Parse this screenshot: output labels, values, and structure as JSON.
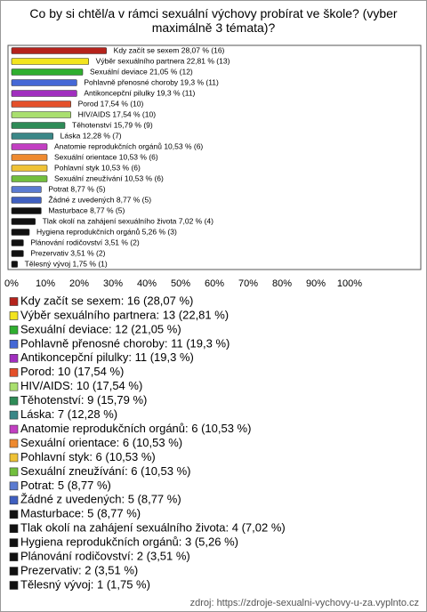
{
  "chart_data": {
    "type": "bar",
    "orientation": "horizontal",
    "title": "Co by si chtěl/a v rámci sexuální výchovy probírat ve škole? (vyber maximálně 3 témata)?",
    "values": [
      28.07,
      22.81,
      21.05,
      19.3,
      19.3,
      17.54,
      17.54,
      15.79,
      12.28,
      10.53,
      10.53,
      10.53,
      10.53,
      8.77,
      8.77,
      8.77,
      7.02,
      5.26,
      3.51,
      3.51,
      1.75
    ],
    "value_labels": [
      "Kdy začít se sexem 28,07 % (16)",
      "Výběr sexuálního partnera 22,81 % (13)",
      "Sexuální deviace 21,05 % (12)",
      "Pohlavně přenosné choroby 19,3 % (11)",
      "Antikoncepční pilulky 19,3 % (11)",
      "Porod 17,54 % (10)",
      "HIV/AIDS 17,54 % (10)",
      "Těhotenství 15,79 % (9)",
      "Láska 12,28 % (7)",
      "Anatomie reprodukčních orgánů 10,53 % (6)",
      "Sexuální orientace 10,53 % (6)",
      "Pohlavní styk 10,53 % (6)",
      "Sexuální zneužívání 10,53 % (6)",
      "Potrat 8,77 % (5)",
      "Žádné z uvedených 8,77 % (5)",
      "Masturbace 8,77 % (5)",
      "Tlak okolí na zahájení sexuálního života 7,02 % (4)",
      "Hygiena reprodukčních orgánů 5,26 % (3)",
      "Plánování rodičovství 3,51 % (2)",
      "Prezervativ 3,51 % (2)",
      "Tělesný vývoj 1,75 % (1)"
    ],
    "legend_labels": [
      "Kdy začít se sexem: 16 (28,07 %)",
      "Výběr sexuálního partnera: 13 (22,81 %)",
      "Sexuální deviace: 12 (21,05 %)",
      "Pohlavně přenosné choroby: 11 (19,3 %)",
      "Antikoncepční pilulky: 11 (19,3 %)",
      "Porod: 10 (17,54 %)",
      "HIV/AIDS: 10 (17,54 %)",
      "Těhotenství: 9 (15,79 %)",
      "Láska: 7 (12,28 %)",
      "Anatomie reprodukčních orgánů: 6 (10,53 %)",
      "Sexuální orientace: 6 (10,53 %)",
      "Pohlavní styk: 6 (10,53 %)",
      "Sexuální zneužívání: 6 (10,53 %)",
      "Potrat: 5 (8,77 %)",
      "Žádné z uvedených: 5 (8,77 %)",
      "Masturbace: 5 (8,77 %)",
      "Tlak okolí na zahájení sexuálního života: 4 (7,02 %)",
      "Hygiena reprodukčních orgánů: 3 (5,26 %)",
      "Plánování rodičovství: 2 (3,51 %)",
      "Prezervativ: 2 (3,51 %)",
      "Tělesný vývoj: 1 (1,75 %)"
    ],
    "colors": [
      "#b5231c",
      "#f2e41f",
      "#2fae2f",
      "#4568d6",
      "#a12fbf",
      "#e4502a",
      "#a9df6e",
      "#2e8b57",
      "#3a8787",
      "#c23fc2",
      "#ee8a30",
      "#efc236",
      "#72bf3e",
      "#5b7bd1",
      "#3f5fc0",
      "#111111",
      "#111111",
      "#111111",
      "#111111",
      "#111111",
      "#111111"
    ],
    "xlim": [
      0,
      100
    ],
    "xticks": [
      {
        "value": 0,
        "label": "0%"
      },
      {
        "value": 10,
        "label": "10%"
      },
      {
        "value": 20,
        "label": "20%"
      },
      {
        "value": 30,
        "label": "30%"
      },
      {
        "value": 40,
        "label": "40%"
      },
      {
        "value": 50,
        "label": "50%"
      },
      {
        "value": 60,
        "label": "60%"
      },
      {
        "value": 70,
        "label": "70%"
      },
      {
        "value": 80,
        "label": "80%"
      },
      {
        "value": 90,
        "label": "90%"
      },
      {
        "value": 100,
        "label": "100%"
      }
    ],
    "source": "zdroj: https://zdroje-sexualni-vychovy-u-za.vyplnto.cz"
  }
}
